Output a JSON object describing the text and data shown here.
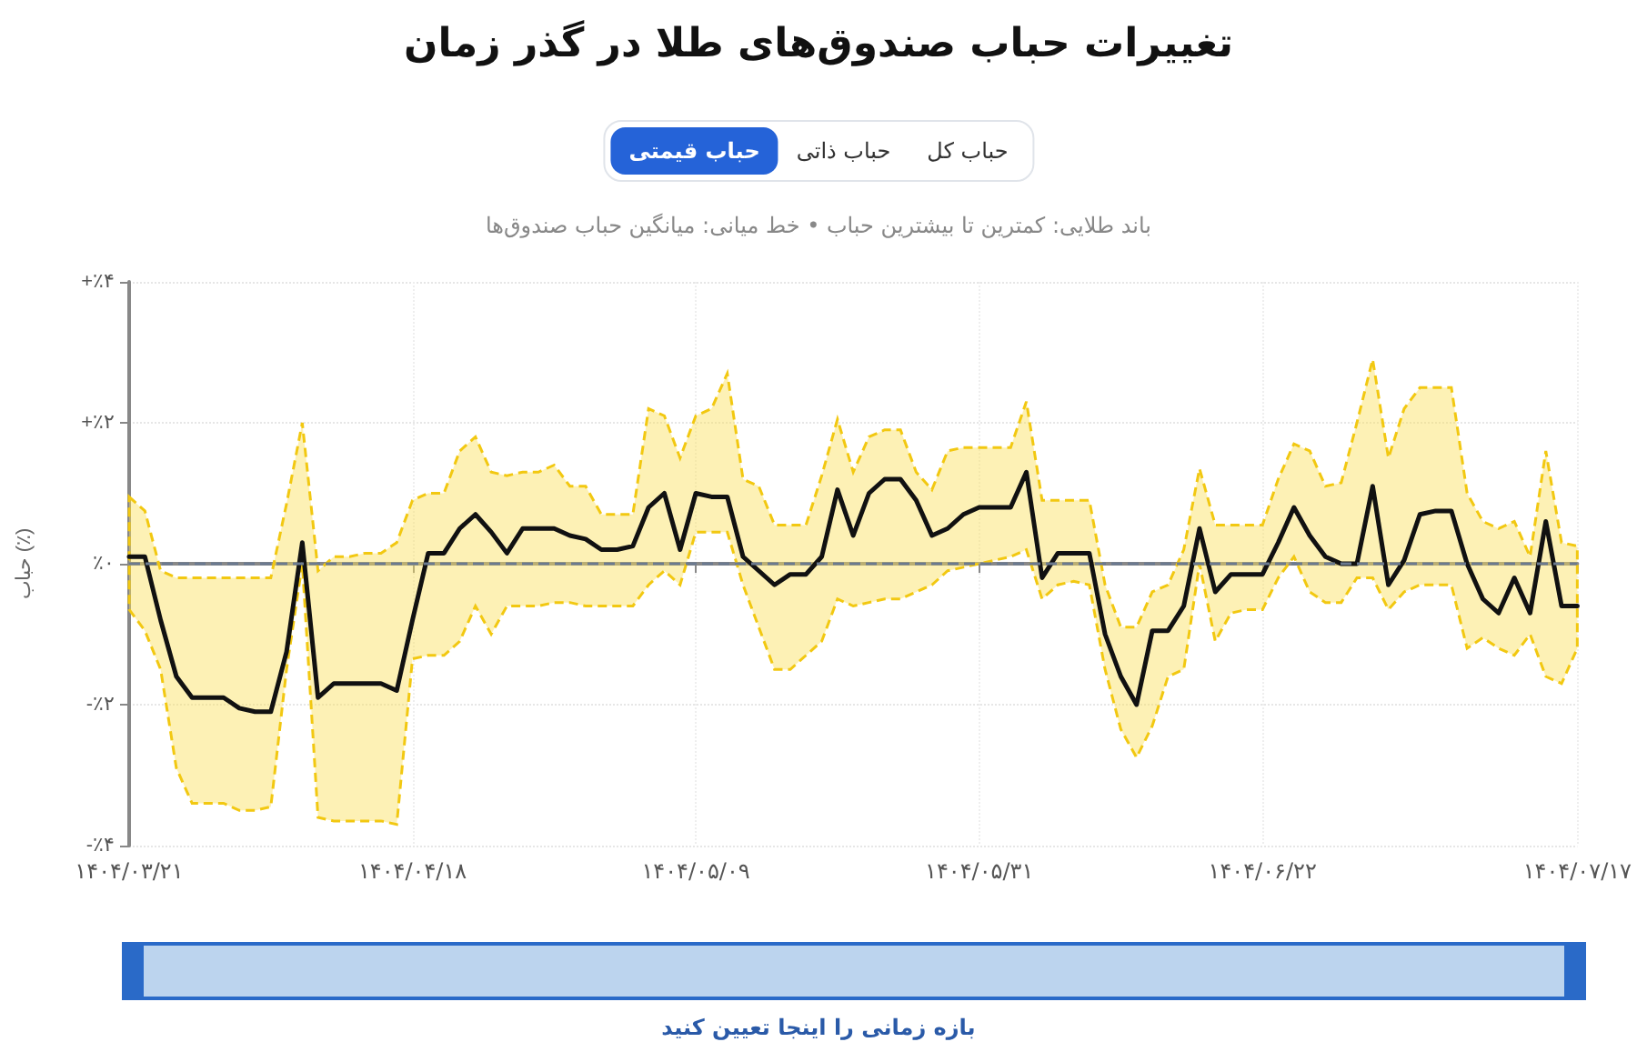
{
  "chart_data": {
    "type": "line",
    "title": "تغییرات حباب صندوق‌های طلا در گذر زمان",
    "subtitle": "باند طلایی: کمترین تا بیشترین حباب • خط میانی: میانگین حباب صندوق‌ها",
    "ylabel": "حباب (٪)",
    "annotations": [
      "حباب قیمتی",
      "حباب ذاتی",
      "حباب کل",
      "بازه زمانی را اینجا تعیین کنید"
    ],
    "categories": [
      "۱۴۰۴/۰۳/۲۱",
      null,
      null,
      null,
      null,
      null,
      null,
      null,
      null,
      null,
      null,
      null,
      null,
      null,
      null,
      null,
      null,
      null,
      "۱۴۰۴/۰۴/۱۸",
      null,
      null,
      null,
      null,
      null,
      null,
      null,
      null,
      null,
      null,
      null,
      null,
      null,
      null,
      null,
      null,
      null,
      "۱۴۰۴/۰۵/۰۹",
      null,
      null,
      null,
      null,
      null,
      null,
      null,
      null,
      null,
      null,
      null,
      null,
      null,
      null,
      null,
      null,
      null,
      "۱۴۰۴/۰۵/۳۱",
      null,
      null,
      null,
      null,
      null,
      null,
      null,
      null,
      null,
      null,
      null,
      null,
      null,
      null,
      null,
      null,
      null,
      "۱۴۰۴/۰۶/۲۲",
      null,
      null,
      null,
      null,
      null,
      null,
      null,
      null,
      null,
      null,
      null,
      null,
      null,
      null,
      null,
      null,
      null,
      null,
      null,
      "۱۴۰۴/۰۷/۱۷"
    ],
    "series": [
      {
        "color": "#111111",
        "line_style": "solid",
        "values": [
          0.1,
          0.1,
          -0.8,
          -1.6,
          -1.9,
          -1.9,
          -1.9,
          -2.05,
          -2.1,
          -2.1,
          -1.25,
          0.3,
          -1.9,
          -1.7,
          -1.7,
          -1.7,
          -1.7,
          -1.8,
          -0.8,
          0.15,
          0.15,
          0.5,
          0.7,
          0.45,
          0.15,
          0.5,
          0.5,
          0.5,
          0.4,
          0.35,
          0.2,
          0.2,
          0.25,
          0.8,
          1.0,
          0.2,
          1.0,
          0.95,
          0.95,
          0.1,
          -0.1,
          -0.3,
          -0.15,
          -0.15,
          0.1,
          1.05,
          0.4,
          1.0,
          1.2,
          1.2,
          0.9,
          0.4,
          0.5,
          0.7,
          0.8,
          0.8,
          0.8,
          1.3,
          -0.2,
          0.15,
          0.15,
          0.15,
          -1.0,
          -1.6,
          -2.0,
          -0.95,
          -0.95,
          -0.6,
          0.5,
          -0.4,
          -0.15,
          -0.15,
          -0.15,
          0.3,
          0.8,
          0.4,
          0.1,
          0.0,
          0.0,
          1.1,
          -0.3,
          0.05,
          0.7,
          0.75,
          0.75,
          0.0,
          -0.5,
          -0.7,
          -0.2,
          -0.7,
          0.6,
          -0.6,
          -0.6
        ],
        "upper": [
          0.95,
          0.75,
          -0.1,
          -0.2,
          -0.2,
          -0.2,
          -0.2,
          -0.2,
          -0.2,
          -0.2,
          0.85,
          2.0,
          -0.1,
          0.1,
          0.1,
          0.15,
          0.15,
          0.3,
          0.9,
          1.0,
          1.0,
          1.6,
          1.8,
          1.3,
          1.25,
          1.3,
          1.3,
          1.4,
          1.1,
          1.1,
          0.7,
          0.7,
          0.7,
          2.2,
          2.1,
          1.5,
          2.1,
          2.2,
          2.7,
          1.2,
          1.1,
          0.55,
          0.55,
          0.55,
          1.25,
          2.05,
          1.3,
          1.8,
          1.9,
          1.9,
          1.3,
          1.05,
          1.6,
          1.65,
          1.65,
          1.65,
          1.65,
          2.3,
          0.9,
          0.9,
          0.9,
          0.9,
          -0.3,
          -0.9,
          -0.9,
          -0.4,
          -0.3,
          0.2,
          1.35,
          0.55,
          0.55,
          0.55,
          0.55,
          1.2,
          1.7,
          1.6,
          1.1,
          1.15,
          2.0,
          2.9,
          1.5,
          2.2,
          2.5,
          2.5,
          2.5,
          1.0,
          0.6,
          0.5,
          0.6,
          0.1,
          1.6,
          0.3,
          0.25
        ],
        "lower": [
          -0.65,
          -0.95,
          -1.5,
          -2.9,
          -3.4,
          -3.4,
          -3.4,
          -3.5,
          -3.5,
          -3.45,
          -1.5,
          0.0,
          -3.6,
          -3.65,
          -3.65,
          -3.65,
          -3.65,
          -3.7,
          -1.35,
          -1.3,
          -1.3,
          -1.1,
          -0.6,
          -1.0,
          -0.6,
          -0.6,
          -0.6,
          -0.55,
          -0.55,
          -0.6,
          -0.6,
          -0.6,
          -0.6,
          -0.3,
          -0.1,
          -0.3,
          0.45,
          0.45,
          0.45,
          -0.3,
          -0.9,
          -1.5,
          -1.5,
          -1.3,
          -1.1,
          -0.5,
          -0.6,
          -0.55,
          -0.5,
          -0.5,
          -0.4,
          -0.3,
          -0.1,
          -0.05,
          0.0,
          0.05,
          0.1,
          0.2,
          -0.5,
          -0.3,
          -0.25,
          -0.3,
          -1.5,
          -2.35,
          -2.75,
          -2.3,
          -1.6,
          -1.5,
          0.0,
          -1.1,
          -0.7,
          -0.65,
          -0.65,
          -0.2,
          0.1,
          -0.4,
          -0.55,
          -0.55,
          -0.2,
          -0.2,
          -0.65,
          -0.4,
          -0.3,
          -0.3,
          -0.3,
          -1.2,
          -1.05,
          -1.2,
          -1.3,
          -1.0,
          -1.6,
          -1.7,
          -1.2
        ]
      }
    ],
    "ylim": [
      -4,
      4
    ],
    "yticks": [
      {
        "value": -4,
        "label": "-٪۴"
      },
      {
        "value": -2,
        "label": "-٪۲"
      },
      {
        "value": 0,
        "label": "٪۰"
      },
      {
        "value": 2,
        "label": "+٪۲"
      },
      {
        "value": 4,
        "label": "+٪۴"
      }
    ],
    "ref_lines": [
      {
        "axis": "y",
        "value": 0,
        "color": "#6b7a90",
        "line_style": "dashed"
      }
    ],
    "grid": true,
    "marker": "none"
  }
}
